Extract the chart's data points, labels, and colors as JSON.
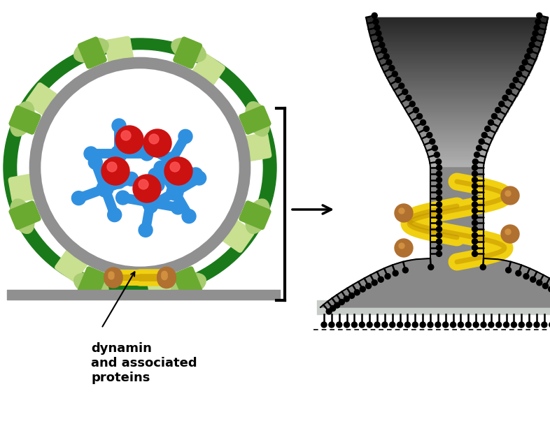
{
  "bg_color": "#ffffff",
  "label_text": "dynamin\nand associated\nproteins",
  "colors": {
    "dark_green": "#1a7a1a",
    "mid_green": "#6aaa30",
    "light_green": "#a8cc70",
    "pale_green": "#c8e090",
    "blue": "#3090e0",
    "blue_dark": "#1060b0",
    "red": "#cc1111",
    "yellow": "#f0d010",
    "yellow_dark": "#c09000",
    "gold": "#b07030",
    "gold_light": "#d09040",
    "gray": "#909090",
    "gray_dark": "#606060",
    "gray_light": "#cccccc",
    "black": "#111111",
    "white": "#ffffff",
    "vesicle_dark": "#2a2a2a",
    "vesicle_mid": "#555555",
    "vesicle_light": "#888888",
    "flat_mem": "#c0c8c0"
  }
}
